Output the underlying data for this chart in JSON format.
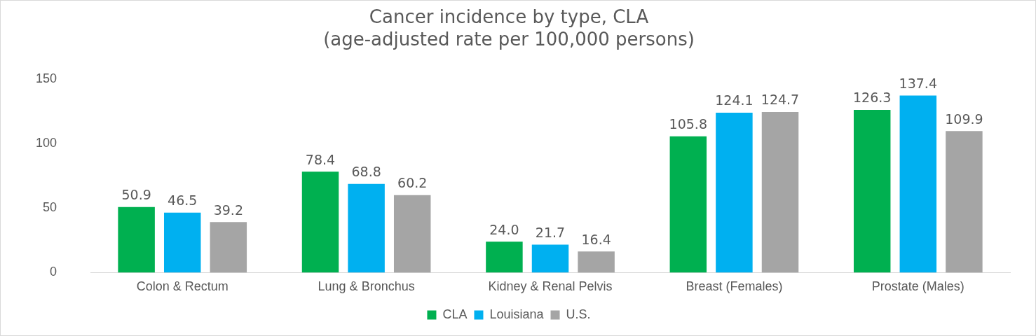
{
  "chart_data": {
    "type": "bar",
    "title": [
      "Cancer incidence by type, CLA",
      "(age-adjusted rate per 100,000 persons)"
    ],
    "categories": [
      "Colon & Rectum",
      "Lung & Bronchus",
      "Kidney & Renal Pelvis",
      "Breast (Females)",
      "Prostate (Males)"
    ],
    "series": [
      {
        "name": "CLA",
        "color": "#00b050",
        "values": [
          50.9,
          78.4,
          24.0,
          105.8,
          126.3
        ],
        "value_labels": [
          "50.9",
          "78.4",
          "24.0",
          "105.8",
          "126.3"
        ]
      },
      {
        "name": "Louisiana",
        "color": "#00b0f0",
        "values": [
          46.5,
          68.8,
          21.7,
          124.1,
          137.4
        ],
        "value_labels": [
          "46.5",
          "68.8",
          "21.7",
          "124.1",
          "137.4"
        ]
      },
      {
        "name": "U.S.",
        "color": "#a5a5a5",
        "values": [
          39.2,
          60.2,
          16.4,
          124.7,
          109.9
        ],
        "value_labels": [
          "39.2",
          "60.2",
          "16.4",
          "124.7",
          "109.9"
        ]
      }
    ],
    "ylim": [
      0,
      150
    ],
    "yticks": [
      0,
      50,
      100,
      150
    ],
    "grid": false,
    "legend": "bottom"
  }
}
